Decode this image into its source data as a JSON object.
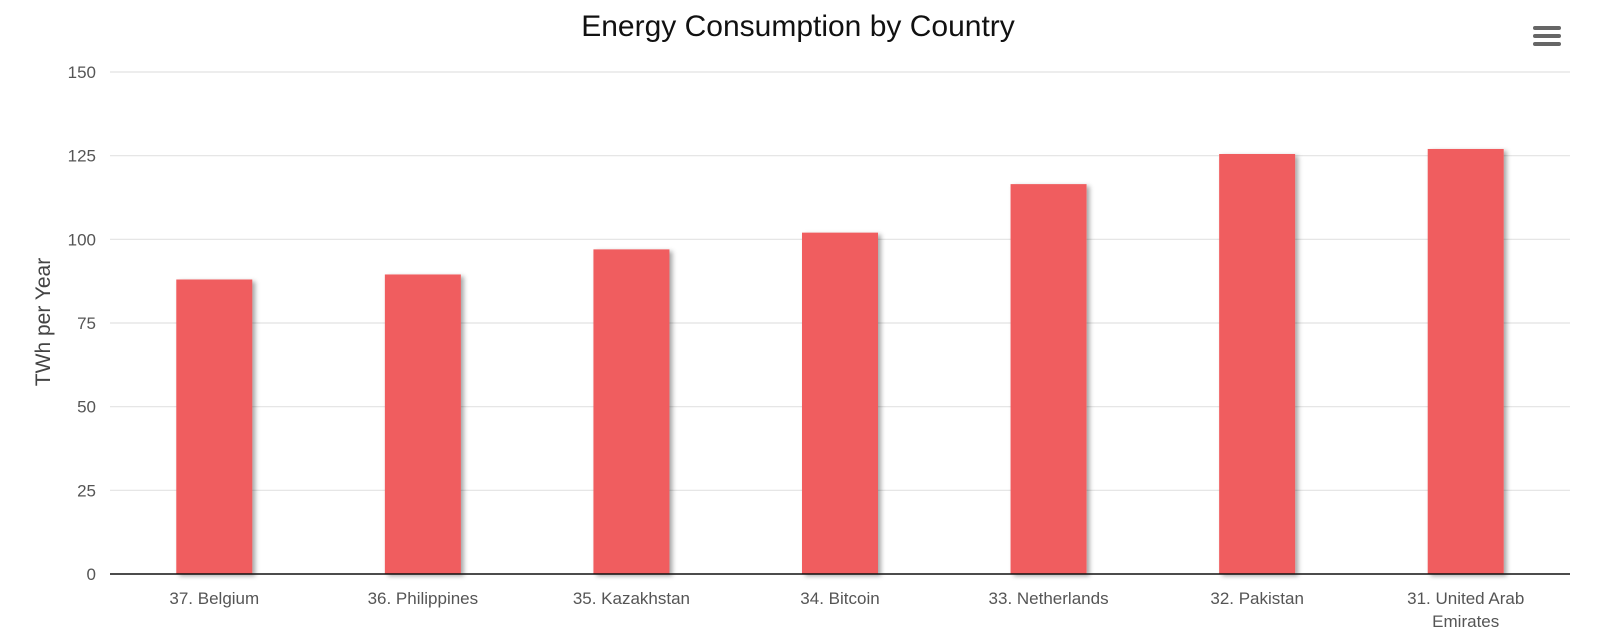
{
  "chart_data": {
    "type": "bar",
    "title": "Energy Consumption by Country",
    "ylabel": "TWh per Year",
    "xlabel": "",
    "categories": [
      "37. Belgium",
      "36. Philippines",
      "35. Kazakhstan",
      "34. Bitcoin",
      "33. Netherlands",
      "32. Pakistan",
      "31. United Arab Emirates"
    ],
    "values": [
      88,
      89.5,
      97,
      102,
      116.5,
      125.5,
      127
    ],
    "ylim": [
      0,
      150
    ],
    "yticks": [
      "0",
      "25",
      "50",
      "75",
      "100",
      "125",
      "150"
    ],
    "grid": true,
    "legend": "none",
    "bar_color": "#f05d5e"
  },
  "toolbar": {
    "menu_icon": "hamburger-menu-icon"
  }
}
